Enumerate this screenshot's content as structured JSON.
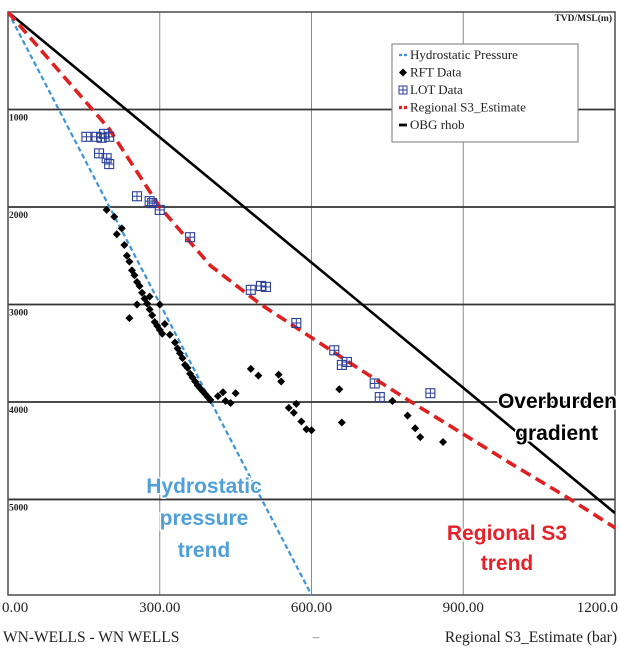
{
  "chart_data": {
    "type": "scatter",
    "axis_title_top": "TVD/MSL(m)",
    "footer_left": "WN-WELLS - WN WELLS",
    "footer_center": "–",
    "footer_right": "Regional S3_Estimate (bar)",
    "xlim": [
      0,
      1200
    ],
    "ylim": [
      0,
      5980
    ],
    "y_inverted": true,
    "grid": true,
    "x_ticks": [
      {
        "value": 0,
        "label": "0.00"
      },
      {
        "value": 300,
        "label": "300.00"
      },
      {
        "value": 600,
        "label": "600.00"
      },
      {
        "value": 900,
        "label": "900.00"
      },
      {
        "value": 1200,
        "label": "1200.0"
      }
    ],
    "y_ticks": [
      {
        "value": 1000,
        "label": "1000"
      },
      {
        "value": 2000,
        "label": "2000"
      },
      {
        "value": 3000,
        "label": "3000"
      },
      {
        "value": 4000,
        "label": "4000"
      },
      {
        "value": 5000,
        "label": "5000"
      }
    ],
    "legend": {
      "placement": "top-right",
      "entries": [
        {
          "label": "Hydrostatic Pressure",
          "symbol": "dashed-line",
          "color": "#3c95d6"
        },
        {
          "label": "RFT Data",
          "symbol": "diamond",
          "color": "#000000"
        },
        {
          "label": "LOT Data",
          "symbol": "boxed-plus",
          "color": "#2a3f9a"
        },
        {
          "label": "Regional S3_Estimate",
          "symbol": "dashed-line",
          "color": "#e02020"
        },
        {
          "label": "OBG rhob",
          "symbol": "solid-line",
          "color": "#000000"
        }
      ]
    },
    "series": [
      {
        "name": "Hydrostatic Pressure",
        "kind": "line",
        "style": "dashed",
        "color": "#3c95d6",
        "points": [
          [
            0,
            0
          ],
          [
            600,
            5980
          ]
        ]
      },
      {
        "name": "OBG rhob",
        "kind": "line",
        "style": "solid",
        "color": "#000000",
        "points": [
          [
            0,
            0
          ],
          [
            1200,
            5140
          ]
        ]
      },
      {
        "name": "Regional S3_Estimate",
        "kind": "line",
        "style": "dashed",
        "color": "#e02020",
        "points": [
          [
            0,
            0
          ],
          [
            200,
            1200
          ],
          [
            300,
            2000
          ],
          [
            400,
            2600
          ],
          [
            500,
            3000
          ],
          [
            600,
            3340
          ],
          [
            700,
            3680
          ],
          [
            800,
            4010
          ],
          [
            900,
            4330
          ],
          [
            1000,
            4650
          ],
          [
            1100,
            4960
          ],
          [
            1200,
            5290
          ]
        ]
      },
      {
        "name": "LOT Data",
        "kind": "scatter",
        "marker": "boxed-plus",
        "color": "#2a3f9a",
        "points": [
          [
            155,
            1280
          ],
          [
            175,
            1280
          ],
          [
            185,
            1290
          ],
          [
            200,
            1280
          ],
          [
            190,
            1250
          ],
          [
            180,
            1450
          ],
          [
            195,
            1500
          ],
          [
            200,
            1560
          ],
          [
            255,
            1890
          ],
          [
            280,
            1940
          ],
          [
            285,
            1960
          ],
          [
            300,
            2030
          ],
          [
            360,
            2310
          ],
          [
            480,
            2850
          ],
          [
            500,
            2810
          ],
          [
            510,
            2820
          ],
          [
            570,
            3190
          ],
          [
            645,
            3470
          ],
          [
            660,
            3620
          ],
          [
            670,
            3590
          ],
          [
            725,
            3810
          ],
          [
            735,
            3950
          ],
          [
            835,
            3910
          ]
        ]
      },
      {
        "name": "RFT Data",
        "kind": "scatter",
        "marker": "diamond",
        "color": "#000000",
        "points": [
          [
            195,
            2030
          ],
          [
            210,
            2100
          ],
          [
            215,
            2280
          ],
          [
            225,
            2220
          ],
          [
            230,
            2390
          ],
          [
            235,
            2500
          ],
          [
            240,
            2560
          ],
          [
            245,
            2650
          ],
          [
            250,
            2700
          ],
          [
            255,
            2770
          ],
          [
            260,
            2810
          ],
          [
            265,
            2880
          ],
          [
            270,
            2940
          ],
          [
            275,
            2990
          ],
          [
            280,
            3050
          ],
          [
            285,
            3110
          ],
          [
            290,
            3180
          ],
          [
            295,
            3220
          ],
          [
            300,
            3260
          ],
          [
            305,
            3300
          ],
          [
            310,
            3200
          ],
          [
            240,
            3140
          ],
          [
            255,
            3000
          ],
          [
            280,
            2920
          ],
          [
            300,
            3000
          ],
          [
            320,
            3310
          ],
          [
            330,
            3390
          ],
          [
            335,
            3450
          ],
          [
            340,
            3500
          ],
          [
            345,
            3550
          ],
          [
            350,
            3620
          ],
          [
            355,
            3650
          ],
          [
            360,
            3710
          ],
          [
            365,
            3750
          ],
          [
            370,
            3790
          ],
          [
            375,
            3830
          ],
          [
            380,
            3860
          ],
          [
            385,
            3890
          ],
          [
            390,
            3920
          ],
          [
            395,
            3950
          ],
          [
            400,
            3980
          ],
          [
            415,
            3940
          ],
          [
            425,
            3900
          ],
          [
            430,
            3990
          ],
          [
            440,
            4010
          ],
          [
            450,
            3910
          ],
          [
            480,
            3660
          ],
          [
            495,
            3730
          ],
          [
            535,
            3720
          ],
          [
            540,
            3790
          ],
          [
            555,
            4060
          ],
          [
            565,
            4110
          ],
          [
            570,
            4020
          ],
          [
            580,
            4200
          ],
          [
            590,
            4280
          ],
          [
            600,
            4290
          ],
          [
            655,
            3870
          ],
          [
            660,
            4210
          ],
          [
            760,
            3990
          ],
          [
            790,
            4140
          ],
          [
            805,
            4270
          ],
          [
            815,
            4360
          ],
          [
            860,
            4410
          ]
        ]
      }
    ],
    "annotations": [
      {
        "lines": [
          "Overburden",
          "gradient"
        ],
        "color": "#000000",
        "position": "right-middle"
      },
      {
        "lines": [
          "Hydrostatic",
          "pressure",
          "trend"
        ],
        "color": "#4fa0d8",
        "position": "bottom-center-left"
      },
      {
        "lines": [
          "Regional S3",
          "trend"
        ],
        "color": "#e8202a",
        "position": "bottom-right"
      }
    ]
  }
}
